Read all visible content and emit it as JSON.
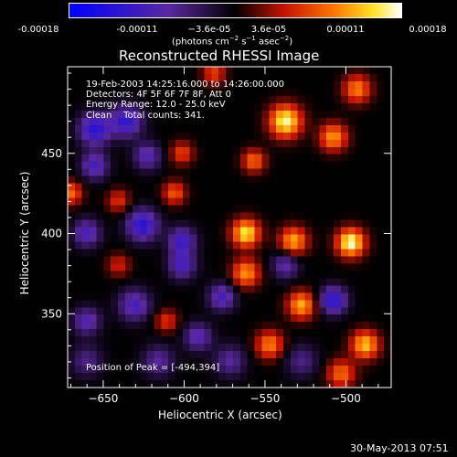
{
  "colorbar": {
    "ticks": [
      "-0.00018",
      "-0.00011",
      "−3.6e-05",
      "3.6e-05",
      "0.00011",
      "0.00018"
    ],
    "units_prefix": "(photons cm",
    "units_sup1": "−2",
    "units_mid": " s",
    "units_sup2": "−1",
    "units_mid2": " asec",
    "units_sup3": "−2",
    "units_suffix": ")",
    "range": [
      -0.00018,
      0.00018
    ]
  },
  "title": "Reconstructed RHESSI Image",
  "info": {
    "line1": "19-Feb-2003 14:25:16.000 to 14:26:00.000",
    "line2": "Detectors: 4F 5F 6F 7F 8F, Att 0",
    "line3": "Energy Range: 12.0 - 25.0 keV",
    "line4": "Clean    Total counts: 341.",
    "peak": "Position of Peak = [-494,394]"
  },
  "footer_date": "30-May-2013 07:51",
  "chart_data": {
    "type": "heatmap",
    "title": "Reconstructed RHESSI Image",
    "xlabel": "Heliocentric X (arcsec)",
    "ylabel": "Heliocentric Y (arcsec)",
    "xlim": [
      -672,
      -472
    ],
    "ylim": [
      304,
      504
    ],
    "x_ticks": [
      -650,
      -600,
      -550,
      -500
    ],
    "y_ticks": [
      350,
      400,
      450
    ],
    "x_tick_labels": [
      "−650",
      "−600",
      "−550",
      "−500"
    ],
    "y_tick_labels": [
      "350",
      "400",
      "450"
    ],
    "value_range": [
      -0.00018,
      0.00018
    ],
    "peak": [
      -494,
      394
    ],
    "sources": [
      {
        "x": -655,
        "y": 465,
        "amp": -0.00013,
        "s": 7
      },
      {
        "x": -635,
        "y": 470,
        "amp": -0.00012,
        "s": 7
      },
      {
        "x": -622,
        "y": 448,
        "amp": -9e-05,
        "s": 6
      },
      {
        "x": -655,
        "y": 442,
        "amp": -0.0001,
        "s": 6
      },
      {
        "x": -625,
        "y": 405,
        "amp": -0.00013,
        "s": 7
      },
      {
        "x": -660,
        "y": 400,
        "amp": -0.0001,
        "s": 6
      },
      {
        "x": -600,
        "y": 395,
        "amp": -0.00011,
        "s": 6
      },
      {
        "x": -600,
        "y": 380,
        "amp": -0.0001,
        "s": 6
      },
      {
        "x": -630,
        "y": 355,
        "amp": -0.0001,
        "s": 7
      },
      {
        "x": -660,
        "y": 345,
        "amp": -9e-05,
        "s": 6
      },
      {
        "x": -575,
        "y": 360,
        "amp": -0.0001,
        "s": 6
      },
      {
        "x": -590,
        "y": 335,
        "amp": -9e-05,
        "s": 6
      },
      {
        "x": -505,
        "y": 358,
        "amp": -0.00013,
        "s": 6
      },
      {
        "x": -535,
        "y": 380,
        "amp": -8e-05,
        "s": 6
      },
      {
        "x": -570,
        "y": 320,
        "amp": -7e-05,
        "s": 7
      },
      {
        "x": -615,
        "y": 320,
        "amp": -7e-05,
        "s": 7
      },
      {
        "x": -660,
        "y": 320,
        "amp": -6e-05,
        "s": 7
      },
      {
        "x": -525,
        "y": 320,
        "amp": -6e-05,
        "s": 7
      },
      {
        "x": -670,
        "y": 425,
        "amp": 0.0001,
        "s": 5
      },
      {
        "x": -640,
        "y": 420,
        "amp": 7e-05,
        "s": 5
      },
      {
        "x": -605,
        "y": 425,
        "amp": 9e-05,
        "s": 5
      },
      {
        "x": -600,
        "y": 450,
        "amp": 8e-05,
        "s": 5
      },
      {
        "x": -580,
        "y": 500,
        "amp": 8e-05,
        "s": 5
      },
      {
        "x": -535,
        "y": 470,
        "amp": 0.00017,
        "s": 7
      },
      {
        "x": -505,
        "y": 460,
        "amp": 0.00012,
        "s": 6
      },
      {
        "x": -490,
        "y": 490,
        "amp": 0.00011,
        "s": 6
      },
      {
        "x": -555,
        "y": 445,
        "amp": 0.0001,
        "s": 5
      },
      {
        "x": -560,
        "y": 400,
        "amp": 0.00016,
        "s": 6
      },
      {
        "x": -560,
        "y": 375,
        "amp": 0.00012,
        "s": 6
      },
      {
        "x": -530,
        "y": 395,
        "amp": 0.00013,
        "s": 6
      },
      {
        "x": -494,
        "y": 394,
        "amp": 0.00018,
        "s": 6
      },
      {
        "x": -525,
        "y": 355,
        "amp": 0.00013,
        "s": 6
      },
      {
        "x": -545,
        "y": 330,
        "amp": 0.00011,
        "s": 6
      },
      {
        "x": -485,
        "y": 330,
        "amp": 0.00014,
        "s": 6
      },
      {
        "x": -500,
        "y": 312,
        "amp": 0.0001,
        "s": 6
      },
      {
        "x": -640,
        "y": 380,
        "amp": 6e-05,
        "s": 5
      },
      {
        "x": -610,
        "y": 345,
        "amp": 7e-05,
        "s": 5
      }
    ]
  }
}
